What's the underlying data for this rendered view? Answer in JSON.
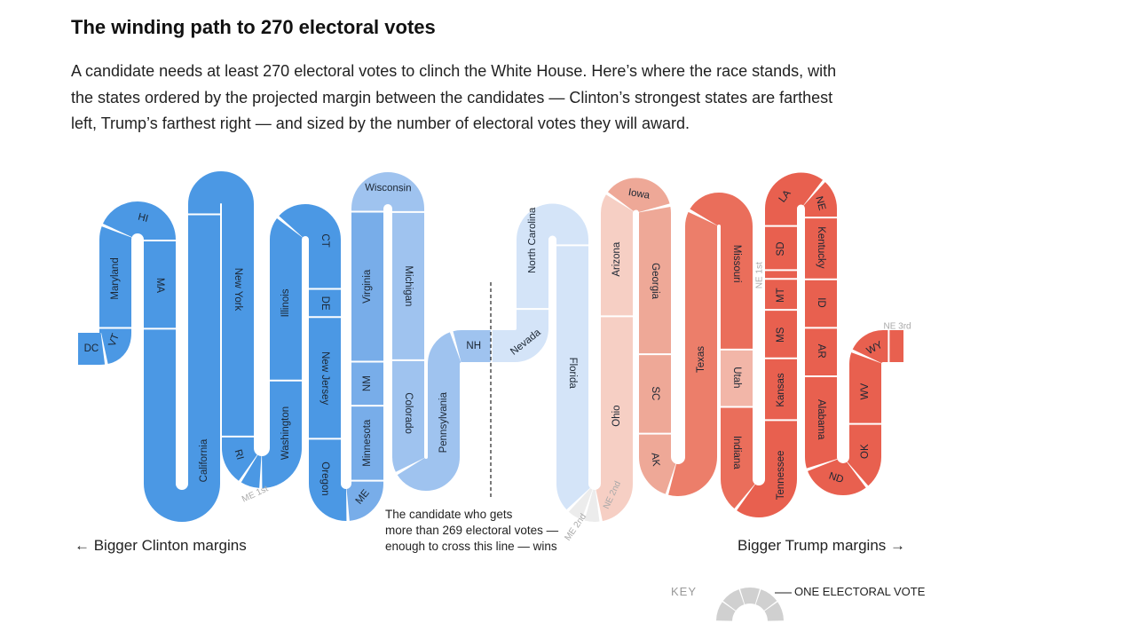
{
  "header": {
    "title": "The winding path to 270 electoral votes",
    "description": [
      "A candidate needs at least 270 electoral votes to clinch the White House. Here’s where the race stands, with",
      "the states ordered by the projected margin between the candidates — Clinton’s strongest states are farthest",
      "left, Trump’s farthest right — and sized by the number of electoral votes they will award."
    ]
  },
  "states": [
    "DC",
    "VT",
    "Maryland",
    "HI",
    "MA",
    "California",
    "New York",
    "RI",
    "ME 1st",
    "Washington",
    "Illinois",
    "CT",
    "DE",
    "New Jersey",
    "Oregon",
    "ME",
    "Minnesota",
    "NM",
    "Virginia",
    "Wisconsin",
    "Michigan",
    "Colorado",
    "Pennsylvania",
    "NH",
    "Nevada",
    "North Carolina",
    "Florida",
    "ME 2nd",
    "NE 2nd",
    "Ohio",
    "Arizona",
    "Iowa",
    "Georgia",
    "SC",
    "AK",
    "Texas",
    "Missouri",
    "Utah",
    "Indiana",
    "Tennessee",
    "Kansas",
    "MS",
    "MT",
    "NE 1st",
    "SD",
    "LA",
    "NE",
    "Kentucky",
    "ID",
    "AR",
    "Alabama",
    "ND",
    "OK",
    "WV",
    "WY",
    "NE 3rd"
  ],
  "annotations": {
    "left": "← Bigger Clinton margins",
    "right": "Bigger Trump margins →",
    "threshold": [
      "The candidate who gets",
      "more than 269 electoral votes —",
      "enough to cross this line — wins"
    ]
  },
  "key": {
    "title": "KEY",
    "label": "ONE ELECTORAL VOTE"
  }
}
